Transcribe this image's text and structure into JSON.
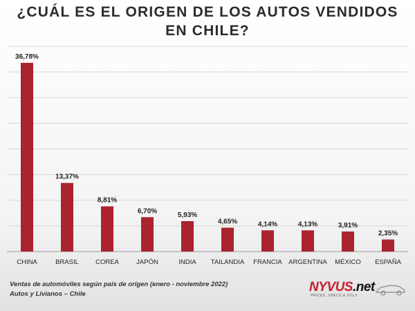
{
  "footer": {
    "line1": "Ventas de automóviles según país de origen (enero - noviembre 2022)",
    "line2": "Autos y Livianos – Chile"
  },
  "logo": {
    "brand": "NYVUS",
    "suffix": ".net",
    "tagline": "PRICES, SPECS & VOLS"
  },
  "chart_data": {
    "type": "bar",
    "title": "¿CUÁL ES EL ORIGEN DE LOS AUTOS VENDIDOS EN CHILE?",
    "categories": [
      "CHINA",
      "BRASIL",
      "COREA",
      "JAPÓN",
      "INDIA",
      "TAILANDIA",
      "FRANCIA",
      "ARGENTINA",
      "MÉXICO",
      "ESPAÑA"
    ],
    "values": [
      36.78,
      13.37,
      8.81,
      6.7,
      5.93,
      4.65,
      4.14,
      4.13,
      3.91,
      2.35
    ],
    "data_labels": [
      "36,78%",
      "13,37%",
      "8,81%",
      "6,70%",
      "5,93%",
      "4,65%",
      "4,14%",
      "4,13%",
      "3,91%",
      "2,35%"
    ],
    "ylim": [
      0,
      40
    ],
    "yticks": [
      0,
      5,
      10,
      15,
      20,
      25,
      30,
      35,
      40
    ],
    "grid": true,
    "xlabel": "",
    "ylabel": "",
    "colors": {
      "bar": "#a9242d",
      "grid": "#d6d6d6",
      "axis": "#9a9a9a"
    }
  }
}
